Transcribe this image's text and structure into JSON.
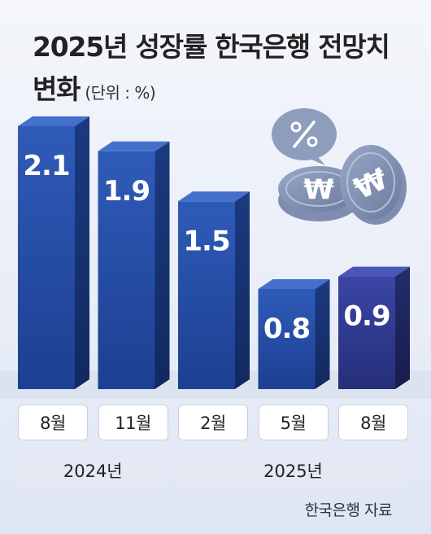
{
  "title_line1": "2025년 성장률 한국은행 전망치",
  "title_line2": "변화",
  "unit": "(단위 : %)",
  "source": "한국은행 자료",
  "icons": [
    "percent-bubble-icon",
    "won-coin-icon"
  ],
  "chart_data": {
    "type": "bar",
    "title": "2025년 성장률 한국은행 전망치 변화",
    "unit": "%",
    "categories": [
      "8월",
      "11월",
      "2월",
      "5월",
      "8월"
    ],
    "values": [
      2.1,
      1.9,
      1.5,
      0.8,
      0.9
    ],
    "value_labels": [
      "2.1",
      "1.9",
      "1.5",
      "0.8",
      "0.9"
    ],
    "groups": [
      {
        "label": "2024년",
        "categories": [
          "8월",
          "11월"
        ]
      },
      {
        "label": "2025년",
        "categories": [
          "2월",
          "5월",
          "8월"
        ]
      }
    ],
    "highlight_index": 4,
    "colors": {
      "bar": "#2a4ea6",
      "bar_highlight": "#2e3a8c"
    },
    "ylim": [
      0,
      2.1
    ],
    "grid": false,
    "legend": "none"
  }
}
